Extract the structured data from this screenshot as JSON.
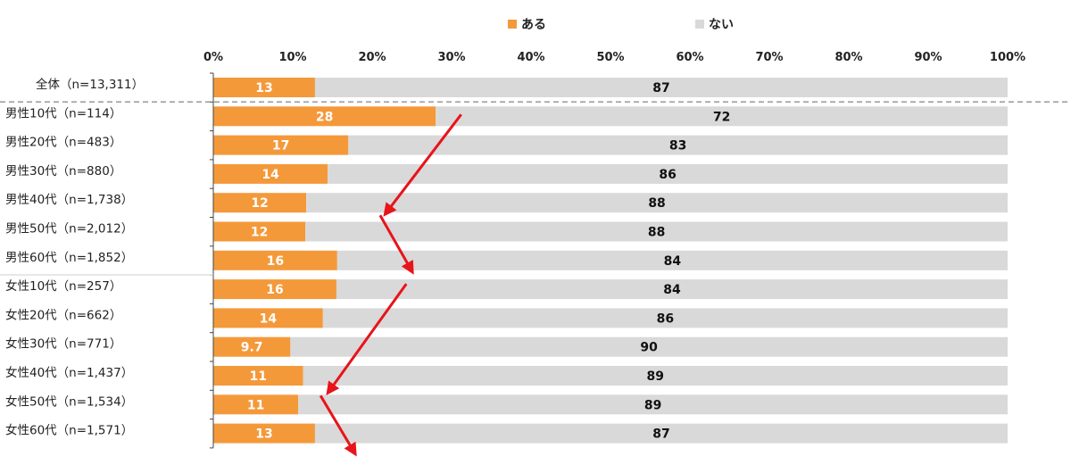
{
  "chart_data": {
    "type": "bar",
    "stacked": true,
    "orientation": "horizontal",
    "categories": [
      "全体（n=13,311）",
      "男性10代（n=114）",
      "男性20代（n=483）",
      "男性30代（n=880）",
      "男性40代（n=1,738）",
      "男性50代（n=2,012）",
      "男性60代（n=1,852）",
      "女性10代（n=257）",
      "女性20代（n=662）",
      "女性30代（n=771）",
      "女性40代（n=1,437）",
      "女性50代（n=1,534）",
      "女性60代（n=1,571）"
    ],
    "series": [
      {
        "name": "ある",
        "color": "#F4993A",
        "values": [
          12.8,
          28,
          17,
          14.4,
          11.7,
          11.6,
          15.6,
          15.5,
          13.8,
          9.7,
          11.3,
          10.7,
          12.8
        ],
        "labels": [
          "13",
          "28",
          "17",
          "14",
          "12",
          "12",
          "16",
          "16",
          "14",
          "9.7",
          "11",
          "11",
          "13"
        ]
      },
      {
        "name": "ない",
        "color": "#D9D9D9",
        "values": [
          87.2,
          72,
          83,
          85.6,
          88.3,
          88.4,
          84.4,
          84.5,
          86.2,
          90.3,
          88.7,
          89.3,
          87.2
        ],
        "labels": [
          "87",
          "72",
          "83",
          "86",
          "88",
          "88",
          "84",
          "84",
          "86",
          "90",
          "89",
          "89",
          "87"
        ]
      }
    ],
    "xlim": [
      0,
      100
    ],
    "x_ticks": [
      "0%",
      "10%",
      "20%",
      "30%",
      "40%",
      "50%",
      "60%",
      "70%",
      "80%",
      "90%",
      "100%"
    ],
    "legend_position": "top-center",
    "annotations": "red arrows connecting decreasing and increasing trend across age groups"
  }
}
